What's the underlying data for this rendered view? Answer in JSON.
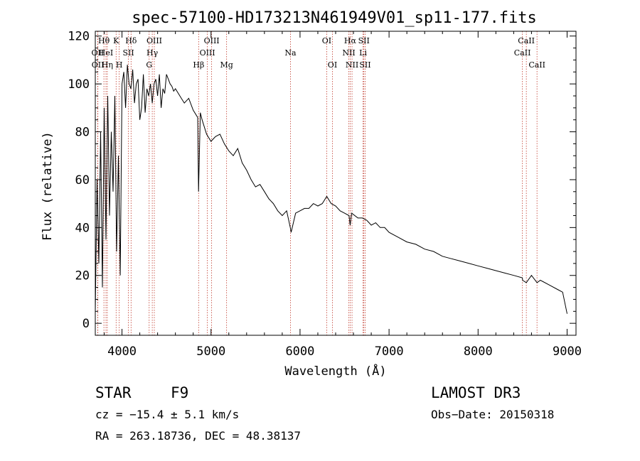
{
  "chart_data": {
    "type": "line",
    "title": "spec-57100-HD173213N461949V01_sp11-177.fits",
    "xlabel": "Wavelength (Å)",
    "ylabel": "Flux (relative)",
    "xlim": [
      3700,
      9100
    ],
    "ylim": [
      -5,
      122
    ],
    "xticks": [
      4000,
      5000,
      6000,
      7000,
      8000,
      9000
    ],
    "yticks": [
      0,
      20,
      40,
      60,
      80,
      100,
      120
    ],
    "series": [
      {
        "name": "flux",
        "x": [
          3700,
          3720,
          3740,
          3760,
          3780,
          3800,
          3820,
          3840,
          3860,
          3880,
          3900,
          3920,
          3940,
          3960,
          3980,
          4000,
          4020,
          4040,
          4060,
          4080,
          4100,
          4120,
          4140,
          4160,
          4180,
          4200,
          4220,
          4240,
          4260,
          4280,
          4300,
          4320,
          4340,
          4360,
          4380,
          4400,
          4420,
          4440,
          4460,
          4480,
          4500,
          4520,
          4540,
          4560,
          4580,
          4600,
          4650,
          4700,
          4750,
          4800,
          4850,
          4860,
          4880,
          4900,
          4950,
          5000,
          5050,
          5100,
          5150,
          5200,
          5250,
          5300,
          5350,
          5400,
          5450,
          5500,
          5550,
          5600,
          5650,
          5700,
          5750,
          5800,
          5850,
          5890,
          5900,
          5950,
          6000,
          6050,
          6100,
          6150,
          6200,
          6250,
          6300,
          6350,
          6400,
          6450,
          6500,
          6550,
          6563,
          6580,
          6650,
          6700,
          6750,
          6800,
          6850,
          6900,
          6950,
          7000,
          7100,
          7200,
          7300,
          7400,
          7500,
          7600,
          7700,
          7800,
          7900,
          8000,
          8100,
          8200,
          8300,
          8400,
          8498,
          8500,
          8542,
          8600,
          8662,
          8700,
          8800,
          8900,
          8950,
          9000
        ],
        "y": [
          5,
          60,
          25,
          80,
          15,
          90,
          35,
          95,
          45,
          80,
          55,
          95,
          30,
          70,
          20,
          100,
          105,
          90,
          108,
          100,
          98,
          106,
          92,
          100,
          102,
          85,
          90,
          104,
          88,
          98,
          95,
          100,
          92,
          100,
          102,
          95,
          104,
          90,
          98,
          96,
          104,
          102,
          100,
          99,
          97,
          98,
          95,
          92,
          94,
          89,
          86,
          55,
          88,
          85,
          79,
          76,
          78,
          79,
          75,
          72,
          70,
          73,
          67,
          64,
          60,
          57,
          58,
          55,
          52,
          50,
          47,
          45,
          47,
          40,
          38,
          46,
          47,
          48,
          48,
          50,
          49,
          50,
          53,
          50,
          49,
          47,
          46,
          45,
          41,
          46,
          44,
          44,
          43,
          41,
          42,
          40,
          40,
          38,
          36,
          34,
          33,
          31,
          30,
          28,
          27,
          26,
          25,
          24,
          23,
          22,
          21,
          20,
          19,
          18,
          17,
          20,
          17,
          18,
          16,
          14,
          13,
          4
        ]
      }
    ],
    "spectral_lines": [
      {
        "label": "Hθ",
        "x": 3797,
        "row": 0
      },
      {
        "label": "K",
        "x": 3934,
        "row": 0
      },
      {
        "label": "Hδ",
        "x": 4102,
        "row": 0
      },
      {
        "label": "OIII",
        "x": 4363,
        "row": 0
      },
      {
        "label": "OIII",
        "x": 5007,
        "row": 0
      },
      {
        "label": "OI",
        "x": 6300,
        "row": 0
      },
      {
        "label": "Hα",
        "x": 6563,
        "row": 0
      },
      {
        "label": "SII",
        "x": 6717,
        "row": 0
      },
      {
        "label": "CaII",
        "x": 8542,
        "row": 0
      },
      {
        "label": "OII",
        "x": 3727,
        "row": 1
      },
      {
        "label": "HeI",
        "x": 3820,
        "row": 1
      },
      {
        "label": "SII",
        "x": 4072,
        "row": 1
      },
      {
        "label": "Hγ",
        "x": 4340,
        "row": 1
      },
      {
        "label": "OIII",
        "x": 4959,
        "row": 1
      },
      {
        "label": "Na",
        "x": 5893,
        "row": 1
      },
      {
        "label": "NII",
        "x": 6548,
        "row": 1
      },
      {
        "label": "Li",
        "x": 6708,
        "row": 1
      },
      {
        "label": "CaII",
        "x": 8498,
        "row": 1
      },
      {
        "label": "OII",
        "x": 3729,
        "row": 2
      },
      {
        "label": "Hη",
        "x": 3835,
        "row": 2
      },
      {
        "label": "H",
        "x": 3969,
        "row": 2
      },
      {
        "label": "G",
        "x": 4305,
        "row": 2
      },
      {
        "label": "Hβ",
        "x": 4861,
        "row": 2
      },
      {
        "label": "Mg",
        "x": 5175,
        "row": 2
      },
      {
        "label": "OI",
        "x": 6364,
        "row": 2
      },
      {
        "label": "NII",
        "x": 6584,
        "row": 2
      },
      {
        "label": "SII",
        "x": 6731,
        "row": 2
      },
      {
        "label": "CaII",
        "x": 8662,
        "row": 2
      }
    ]
  },
  "info": {
    "object_type": "STAR",
    "subclass": "F9",
    "survey": "LAMOST DR3",
    "redshift": "cz = −15.4 ± 5.1 km/s",
    "obs_date": "Obs−Date: 20150318",
    "coords": "RA = 263.18736, DEC =  48.38137"
  },
  "colors": {
    "line": "#000000",
    "marker": "#c0392b"
  }
}
